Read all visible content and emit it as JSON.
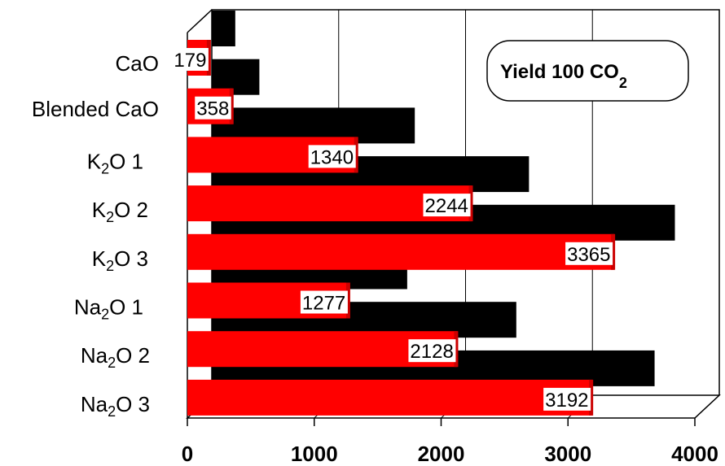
{
  "chart_data": {
    "type": "bar",
    "orientation": "horizontal",
    "three_d": true,
    "title": "Yield 100 CO",
    "title_subscript": "2",
    "categories": [
      {
        "base": "CaO",
        "sub": "",
        "rest": ""
      },
      {
        "base": "Blended CaO",
        "sub": "",
        "rest": ""
      },
      {
        "base": "K",
        "sub": "2",
        "rest": "O  1"
      },
      {
        "base": "K",
        "sub": "2",
        "rest": "O   2"
      },
      {
        "base": "K",
        "sub": "2",
        "rest": "O   3"
      },
      {
        "base": "Na",
        "sub": "2",
        "rest": "O  1"
      },
      {
        "base": "Na",
        "sub": "2",
        "rest": "O   2"
      },
      {
        "base": "Na",
        "sub": "2",
        "rest": "O   3"
      }
    ],
    "series": [
      {
        "color": "#000000",
        "values": [
          185,
          375,
          1600,
          2500,
          3650,
          1540,
          2400,
          3490
        ]
      },
      {
        "color": "#ff0000",
        "values": [
          179,
          358,
          1340,
          2244,
          3365,
          1277,
          2128,
          3192
        ],
        "labels": [
          "179",
          "358",
          "1340",
          "2244",
          "3365",
          "1277",
          "2128",
          "3192"
        ]
      }
    ],
    "xlim": [
      0,
      4000
    ],
    "xticks": [
      "0",
      "1000",
      "2000",
      "3000",
      "4000"
    ],
    "grid": true,
    "legend": "none"
  }
}
